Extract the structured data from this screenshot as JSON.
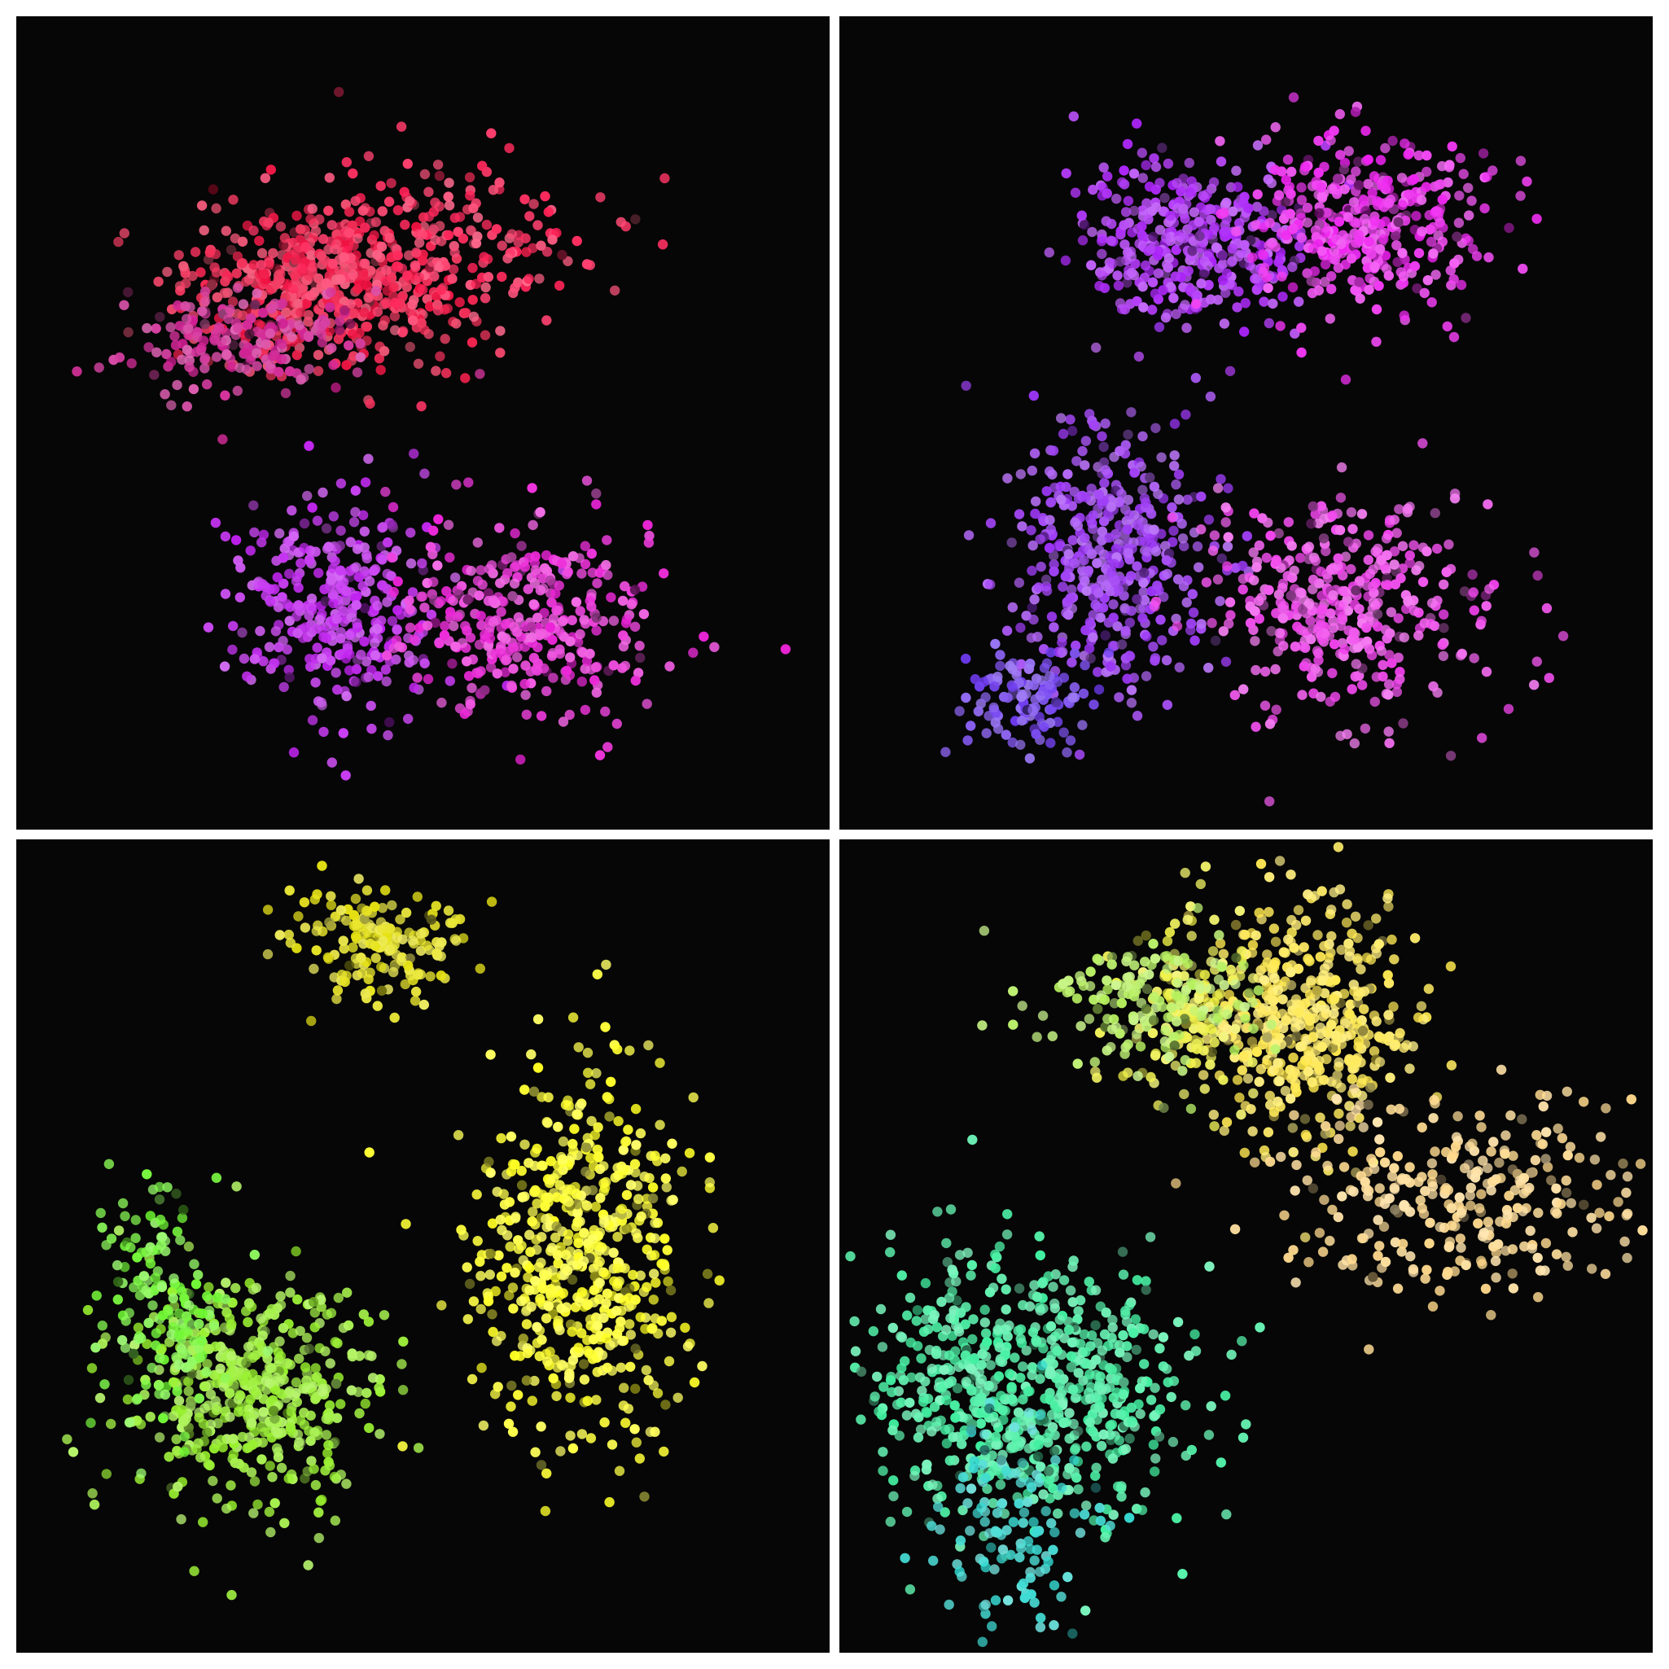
{
  "figure": {
    "background": "#ffffff",
    "panel_background": "#060606"
  },
  "chart_data": [
    {
      "type": "scatter",
      "title": "",
      "xlabel": "",
      "ylabel": "",
      "grid": false,
      "axes_visible": false,
      "xlim": [
        0,
        100
      ],
      "ylim": [
        0,
        100
      ],
      "marker": "circle",
      "clusters": [
        {
          "center": [
            38,
            67
          ],
          "spread": [
            8,
            4.5
          ],
          "count": 520,
          "color": "#f01040"
        },
        {
          "center": [
            52,
            72
          ],
          "spread": [
            9,
            5
          ],
          "count": 200,
          "color": "#ff1f55"
        },
        {
          "center": [
            28,
            60
          ],
          "spread": [
            7,
            3
          ],
          "count": 180,
          "color": "#d01a90"
        },
        {
          "center": [
            39,
            27
          ],
          "spread": [
            6,
            7
          ],
          "count": 350,
          "color": "#c020f0"
        },
        {
          "center": [
            63,
            26
          ],
          "spread": [
            8,
            6
          ],
          "count": 350,
          "color": "#ec22d8"
        }
      ]
    },
    {
      "type": "scatter",
      "title": "",
      "xlabel": "",
      "ylabel": "",
      "grid": false,
      "axes_visible": false,
      "xlim": [
        0,
        100
      ],
      "ylim": [
        0,
        100
      ],
      "marker": "circle",
      "clusters": [
        {
          "center": [
            43,
            72
          ],
          "spread": [
            7,
            5
          ],
          "count": 380,
          "color": "#aa22f8"
        },
        {
          "center": [
            65,
            75
          ],
          "spread": [
            7,
            5.5
          ],
          "count": 380,
          "color": "#ee1ff0"
        },
        {
          "center": [
            34,
            33
          ],
          "spread": [
            6,
            8
          ],
          "count": 450,
          "color": "#9a33f5"
        },
        {
          "center": [
            23,
            16
          ],
          "spread": [
            4,
            3
          ],
          "count": 120,
          "color": "#6e3af0"
        },
        {
          "center": [
            62,
            27
          ],
          "spread": [
            8,
            7
          ],
          "count": 400,
          "color": "#f040ec"
        }
      ]
    },
    {
      "type": "scatter",
      "title": "",
      "xlabel": "",
      "ylabel": "",
      "grid": false,
      "axes_visible": false,
      "xlim": [
        0,
        100
      ],
      "ylim": [
        0,
        100
      ],
      "marker": "circle",
      "clusters": [
        {
          "center": [
            45,
            87
          ],
          "spread": [
            5,
            3.5
          ],
          "count": 180,
          "color": "#e6e210"
        },
        {
          "center": [
            69,
            49
          ],
          "spread": [
            6,
            11
          ],
          "count": 600,
          "color": "#ffff22"
        },
        {
          "center": [
            29,
            32
          ],
          "spread": [
            7,
            7
          ],
          "count": 500,
          "color": "#96f02a"
        },
        {
          "center": [
            18,
            42
          ],
          "spread": [
            4,
            7
          ],
          "count": 150,
          "color": "#6ef830"
        }
      ]
    },
    {
      "type": "scatter",
      "title": "",
      "xlabel": "",
      "ylabel": "",
      "grid": false,
      "axes_visible": false,
      "xlim": [
        0,
        100
      ],
      "ylim": [
        0,
        100
      ],
      "marker": "circle",
      "clusters": [
        {
          "center": [
            58,
            78
          ],
          "spread": [
            6,
            7
          ],
          "count": 450,
          "color": "#ffe84a"
        },
        {
          "center": [
            43,
            80
          ],
          "spread": [
            4,
            6
          ],
          "count": 150,
          "color": "#eef040"
        },
        {
          "center": [
            38,
            80
          ],
          "spread": [
            7,
            4
          ],
          "count": 150,
          "color": "#b4f05a"
        },
        {
          "center": [
            76,
            56
          ],
          "spread": [
            11,
            6
          ],
          "count": 300,
          "color": "#ffd98a"
        },
        {
          "center": [
            23,
            33
          ],
          "spread": [
            10,
            8
          ],
          "count": 700,
          "color": "#40f0a0"
        },
        {
          "center": [
            22,
            15
          ],
          "spread": [
            5,
            7
          ],
          "count": 120,
          "color": "#30d8d0"
        }
      ]
    }
  ]
}
